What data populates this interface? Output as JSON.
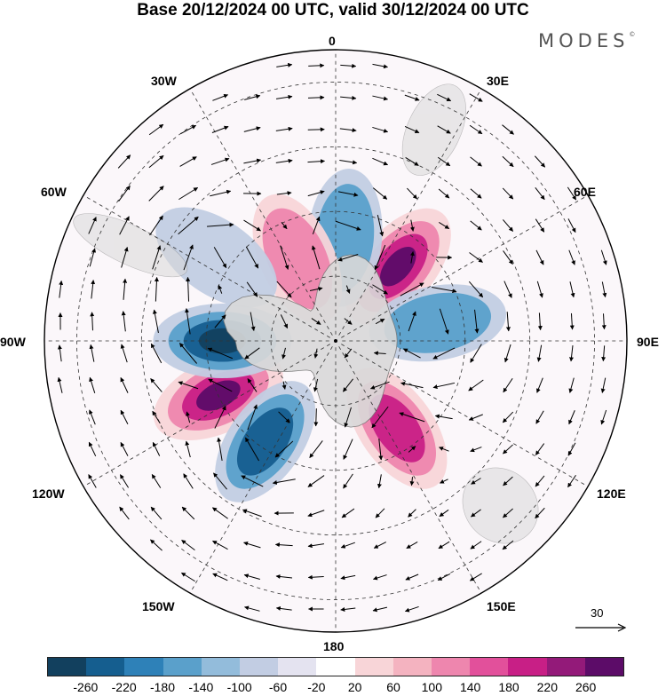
{
  "title": "Base 20/12/2024 00 UTC, valid 30/12/2024 00 UTC",
  "brand": "MODES",
  "brand_mark": "©",
  "longitude_labels": {
    "lon_0": "0",
    "lon_30e": "30E",
    "lon_60e": "60E",
    "lon_90e": "90E",
    "lon_120e": "120E",
    "lon_150e": "150E",
    "lon_180": "180",
    "lon_150w": "150W",
    "lon_120w": "120W",
    "lon_90w": "90W",
    "lon_60w": "60W",
    "lon_30w": "30W"
  },
  "reference_vector": {
    "value": "30"
  },
  "colorbar": {
    "colors": [
      "#12405e",
      "#155e8f",
      "#2e81b8",
      "#5aa0cb",
      "#93bcdb",
      "#c2cde3",
      "#e4e3f0",
      "#ffffff",
      "#f8d5d8",
      "#f4b3c0",
      "#ee86ae",
      "#e2509b",
      "#c81f86",
      "#931a79",
      "#5c0c68"
    ],
    "tick_labels": [
      "-260",
      "-220",
      "-180",
      "-140",
      "-100",
      "-60",
      "-20",
      "20",
      "60",
      "100",
      "140",
      "180",
      "220",
      "260"
    ]
  },
  "map": {
    "projection": "south polar stereographic",
    "field_colors": {
      "pos_light": "#f8d5d8",
      "pos_mid": "#ee86ae",
      "pos_strong": "#c81f86",
      "pos_max": "#5c0c68",
      "neg_light": "#c2cde3",
      "neg_mid": "#5aa0cb",
      "neg_strong": "#155e8f",
      "neg_max": "#12405e",
      "land": "#d9d9d9"
    },
    "anomaly_centers": [
      {
        "sign": "positive",
        "lon": 40,
        "colat": 30,
        "level": 4
      },
      {
        "sign": "positive",
        "lon": -115,
        "colat": 40,
        "level": 4
      },
      {
        "sign": "negative",
        "lon": -90,
        "colat": 35,
        "level": 4
      },
      {
        "sign": "negative",
        "lon": -145,
        "colat": 38,
        "level": 3
      },
      {
        "sign": "negative",
        "lon": 5,
        "colat": 32,
        "level": 2
      },
      {
        "sign": "negative",
        "lon": 80,
        "colat": 32,
        "level": 2
      },
      {
        "sign": "positive",
        "lon": -25,
        "colat": 28,
        "level": 2
      },
      {
        "sign": "positive",
        "lon": 145,
        "colat": 33,
        "level": 3
      },
      {
        "sign": "negative",
        "lon": -55,
        "colat": 45,
        "level": 1
      }
    ]
  }
}
